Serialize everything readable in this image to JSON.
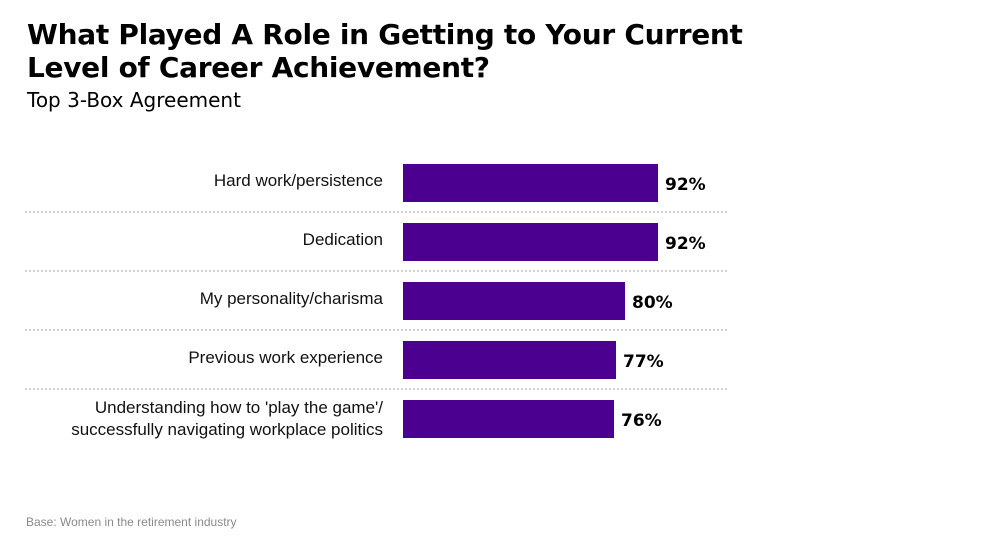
{
  "header": {
    "title": "What Played A Role in Getting to Your Current Level of Career Achievement?",
    "subtitle": "Top 3-Box Agreement"
  },
  "footer": {
    "base_note": "Base: Women in the retirement industry"
  },
  "colors": {
    "bar": "#4b0090",
    "separator": "#d0d0d0"
  },
  "rows": [
    {
      "label": "Hard work/persistence",
      "value": 92,
      "value_label": "92%"
    },
    {
      "label": "Dedication",
      "value": 92,
      "value_label": "92%"
    },
    {
      "label": "My personality/charisma",
      "value": 80,
      "value_label": "80%"
    },
    {
      "label": "Previous work experience",
      "value": 77,
      "value_label": "77%"
    },
    {
      "label": "Understanding how to 'play the game'/ successfully navigating workplace politics",
      "value": 76,
      "value_label": "76%"
    }
  ],
  "chart_data": {
    "type": "bar",
    "orientation": "horizontal",
    "title": "What Played A Role in Getting to Your Current Level of Career Achievement?",
    "subtitle": "Top 3-Box Agreement",
    "categories": [
      "Hard work/persistence",
      "Dedication",
      "My personality/charisma",
      "Previous work experience",
      "Understanding how to 'play the game'/ successfully navigating workplace politics"
    ],
    "values": [
      92,
      92,
      80,
      77,
      76
    ],
    "unit": "%",
    "xlabel": "",
    "ylabel": "",
    "grid": false,
    "legend": null,
    "annotations": [
      "Base: Women in the retirement industry"
    ]
  }
}
